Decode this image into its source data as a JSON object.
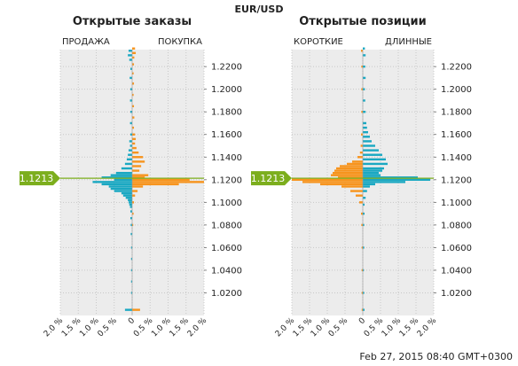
{
  "pair": "EUR/USD",
  "timestamp": "Feb 27, 2015 08:40 GMT+0300",
  "current_price": "1.1213",
  "colors": {
    "short_sell": "#1aa8c2",
    "long_buy": "#f7941d",
    "price_tag": "#7cae1d",
    "plot_bg": "#ececec",
    "grid": "#c8c8c8"
  },
  "chart_data": [
    {
      "type": "bar",
      "orientation": "horizontal-butterfly",
      "title": "Открытые заказы",
      "left_label": "ПРОДАЖА",
      "right_label": "ПОКУПКА",
      "ylim": [
        1.0,
        1.235
      ],
      "yticks": [
        "1.2200",
        "1.2000",
        "1.1800",
        "1.1600",
        "1.1400",
        "1.1200",
        "1.1000",
        "1.0800",
        "1.0600",
        "1.0400",
        "1.0200"
      ],
      "xticks": [
        "2.0 %",
        "1.5 %",
        "1.0 %",
        "0.5 %",
        "0",
        "0.5 %",
        "1.0 %",
        "1.5 %",
        "2.0 %"
      ],
      "xlim": [
        -2.0,
        2.0
      ],
      "series": [
        {
          "name": "ПРОДАЖА",
          "color": "#1aa8c2",
          "points": [
            [
              1.234,
              0.1
            ],
            [
              1.23,
              0.12
            ],
            [
              1.226,
              0.08
            ],
            [
              1.218,
              0.05
            ],
            [
              1.21,
              0.07
            ],
            [
              1.2,
              0.05
            ],
            [
              1.19,
              0.06
            ],
            [
              1.18,
              0.05
            ],
            [
              1.17,
              0.06
            ],
            [
              1.16,
              0.05
            ],
            [
              1.154,
              0.08
            ],
            [
              1.15,
              0.06
            ],
            [
              1.146,
              0.1
            ],
            [
              1.142,
              0.12
            ],
            [
              1.138,
              0.15
            ],
            [
              1.134,
              0.2
            ],
            [
              1.13,
              0.3
            ],
            [
              1.126,
              0.45
            ],
            [
              1.124,
              0.6
            ],
            [
              1.122,
              0.85
            ],
            [
              1.12,
              0.5
            ],
            [
              1.118,
              1.1
            ],
            [
              1.116,
              0.85
            ],
            [
              1.114,
              0.65
            ],
            [
              1.112,
              0.6
            ],
            [
              1.11,
              0.5
            ],
            [
              1.108,
              0.3
            ],
            [
              1.106,
              0.25
            ],
            [
              1.104,
              0.18
            ],
            [
              1.102,
              0.12
            ],
            [
              1.1,
              0.1
            ],
            [
              1.098,
              0.08
            ],
            [
              1.096,
              0.06
            ],
            [
              1.092,
              0.05
            ],
            [
              1.086,
              0.05
            ],
            [
              1.08,
              0.04
            ],
            [
              1.072,
              0.04
            ],
            [
              1.06,
              0.03
            ],
            [
              1.05,
              0.03
            ],
            [
              1.04,
              0.03
            ],
            [
              1.03,
              0.03
            ],
            [
              1.02,
              0.03
            ],
            [
              1.005,
              0.2
            ]
          ]
        },
        {
          "name": "ПОКУПКА",
          "color": "#f7941d",
          "points": [
            [
              1.236,
              0.08
            ],
            [
              1.232,
              0.1
            ],
            [
              1.228,
              0.06
            ],
            [
              1.222,
              0.05
            ],
            [
              1.214,
              0.04
            ],
            [
              1.205,
              0.05
            ],
            [
              1.195,
              0.04
            ],
            [
              1.185,
              0.05
            ],
            [
              1.175,
              0.06
            ],
            [
              1.166,
              0.05
            ],
            [
              1.16,
              0.08
            ],
            [
              1.156,
              0.1
            ],
            [
              1.152,
              0.08
            ],
            [
              1.148,
              0.12
            ],
            [
              1.144,
              0.18
            ],
            [
              1.14,
              0.3
            ],
            [
              1.136,
              0.35
            ],
            [
              1.132,
              0.25
            ],
            [
              1.128,
              0.2
            ],
            [
              1.124,
              0.45
            ],
            [
              1.122,
              0.35
            ],
            [
              1.12,
              1.6
            ],
            [
              1.118,
              2.0
            ],
            [
              1.116,
              1.3
            ],
            [
              1.114,
              0.3
            ],
            [
              1.11,
              0.15
            ],
            [
              1.106,
              0.08
            ],
            [
              1.1,
              0.05
            ],
            [
              1.09,
              0.04
            ],
            [
              1.08,
              0.03
            ],
            [
              1.005,
              0.22
            ]
          ]
        }
      ]
    },
    {
      "type": "bar",
      "orientation": "horizontal-butterfly",
      "title": "Открытые позиции",
      "left_label": "КОРОТКИЕ",
      "right_label": "ДЛИННЫЕ",
      "ylim": [
        1.0,
        1.235
      ],
      "yticks": [
        "1.2200",
        "1.2000",
        "1.1800",
        "1.1600",
        "1.1400",
        "1.1200",
        "1.1000",
        "1.0800",
        "1.0600",
        "1.0400",
        "1.0200"
      ],
      "xticks": [
        "2.0 %",
        "1.5 %",
        "1.0 %",
        "0.5 %",
        "0",
        "0.5 %",
        "1.0 %",
        "1.5 %",
        "2.0 %"
      ],
      "xlim": [
        -2.0,
        2.0
      ],
      "series": [
        {
          "name": "КОРОТКИЕ",
          "color": "#f7941d",
          "points": [
            [
              1.234,
              0.05
            ],
            [
              1.22,
              0.04
            ],
            [
              1.2,
              0.04
            ],
            [
              1.18,
              0.04
            ],
            [
              1.16,
              0.05
            ],
            [
              1.15,
              0.06
            ],
            [
              1.144,
              0.08
            ],
            [
              1.14,
              0.15
            ],
            [
              1.136,
              0.3
            ],
            [
              1.134,
              0.45
            ],
            [
              1.132,
              0.65
            ],
            [
              1.13,
              0.75
            ],
            [
              1.128,
              0.8
            ],
            [
              1.126,
              0.85
            ],
            [
              1.124,
              0.9
            ],
            [
              1.122,
              0.7
            ],
            [
              1.12,
              2.0
            ],
            [
              1.118,
              1.7
            ],
            [
              1.116,
              1.2
            ],
            [
              1.114,
              0.6
            ],
            [
              1.11,
              0.35
            ],
            [
              1.106,
              0.2
            ],
            [
              1.1,
              0.1
            ],
            [
              1.09,
              0.05
            ],
            [
              1.08,
              0.04
            ],
            [
              1.06,
              0.03
            ],
            [
              1.04,
              0.03
            ],
            [
              1.02,
              0.03
            ],
            [
              1.005,
              0.03
            ]
          ]
        },
        {
          "name": "ДЛИННЫЕ",
          "color": "#1aa8c2",
          "points": [
            [
              1.236,
              0.06
            ],
            [
              1.23,
              0.08
            ],
            [
              1.22,
              0.07
            ],
            [
              1.21,
              0.08
            ],
            [
              1.2,
              0.06
            ],
            [
              1.19,
              0.07
            ],
            [
              1.18,
              0.08
            ],
            [
              1.17,
              0.1
            ],
            [
              1.166,
              0.12
            ],
            [
              1.162,
              0.15
            ],
            [
              1.158,
              0.2
            ],
            [
              1.154,
              0.25
            ],
            [
              1.15,
              0.35
            ],
            [
              1.146,
              0.45
            ],
            [
              1.142,
              0.55
            ],
            [
              1.138,
              0.65
            ],
            [
              1.134,
              0.7
            ],
            [
              1.13,
              0.6
            ],
            [
              1.128,
              0.55
            ],
            [
              1.126,
              0.45
            ],
            [
              1.124,
              0.5
            ],
            [
              1.122,
              1.55
            ],
            [
              1.12,
              1.9
            ],
            [
              1.118,
              1.2
            ],
            [
              1.116,
              0.35
            ],
            [
              1.114,
              0.2
            ],
            [
              1.11,
              0.12
            ],
            [
              1.104,
              0.08
            ],
            [
              1.098,
              0.05
            ],
            [
              1.09,
              0.05
            ],
            [
              1.08,
              0.04
            ],
            [
              1.06,
              0.04
            ],
            [
              1.04,
              0.03
            ],
            [
              1.02,
              0.04
            ],
            [
              1.005,
              0.05
            ]
          ]
        }
      ]
    }
  ]
}
